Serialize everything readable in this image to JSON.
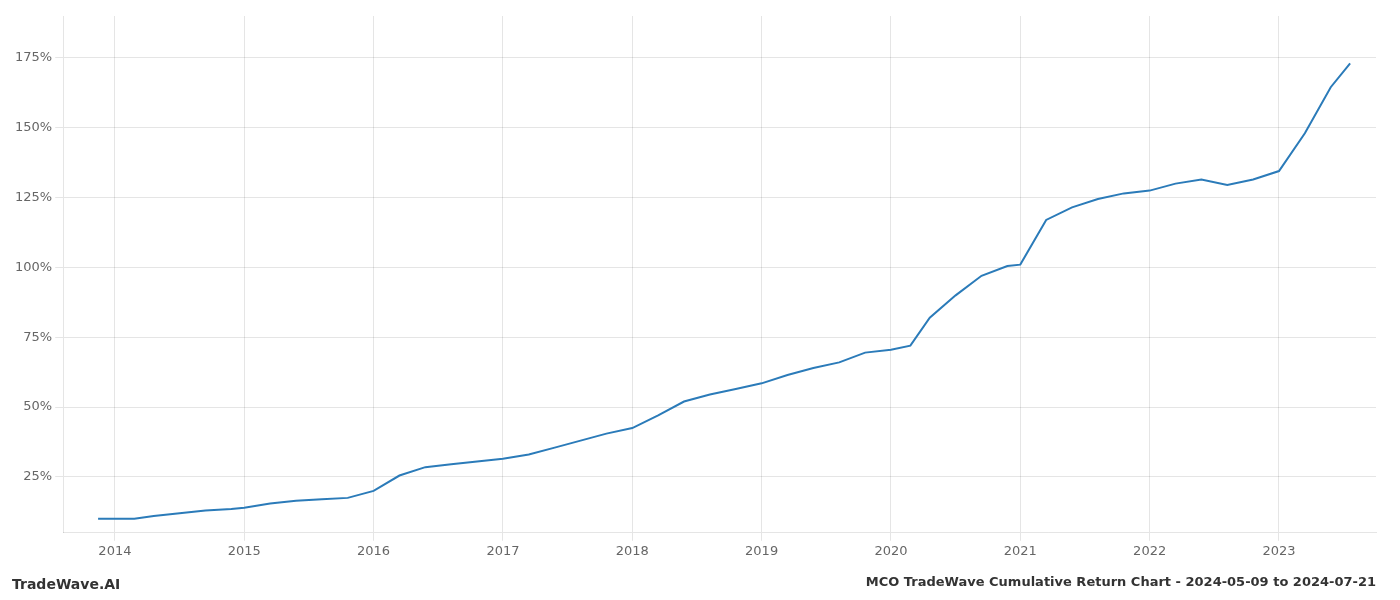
{
  "chart_data": {
    "type": "line",
    "title": "MCO TradeWave Cumulative Return Chart - 2024-05-09 to 2024-07-21",
    "annotations": [
      "TradeWave.AI"
    ],
    "x": [
      2013.87,
      2014.0,
      2014.15,
      2014.3,
      2014.5,
      2014.7,
      2014.9,
      2015.0,
      2015.2,
      2015.4,
      2015.6,
      2015.8,
      2016.0,
      2016.2,
      2016.4,
      2016.6,
      2016.8,
      2017.0,
      2017.2,
      2017.4,
      2017.6,
      2017.8,
      2018.0,
      2018.2,
      2018.4,
      2018.6,
      2018.8,
      2019.0,
      2019.2,
      2019.4,
      2019.6,
      2019.8,
      2020.0,
      2020.15,
      2020.3,
      2020.5,
      2020.7,
      2020.9,
      2021.0,
      2021.2,
      2021.4,
      2021.6,
      2021.8,
      2022.0,
      2022.2,
      2022.4,
      2022.6,
      2022.8,
      2023.0,
      2023.2,
      2023.4,
      2023.55
    ],
    "values": [
      0.1,
      0.1,
      0.1,
      0.11,
      0.12,
      0.13,
      0.135,
      0.14,
      0.155,
      0.165,
      0.17,
      0.175,
      0.2,
      0.255,
      0.285,
      0.295,
      0.305,
      0.315,
      0.33,
      0.355,
      0.38,
      0.405,
      0.425,
      0.47,
      0.52,
      0.545,
      0.565,
      0.585,
      0.615,
      0.64,
      0.66,
      0.695,
      0.705,
      0.72,
      0.82,
      0.9,
      0.97,
      1.005,
      1.01,
      1.17,
      1.215,
      1.245,
      1.265,
      1.275,
      1.3,
      1.315,
      1.295,
      1.315,
      1.345,
      1.48,
      1.645,
      1.73
    ],
    "color": "#2b7bb9",
    "xlim": [
      2013.6,
      2023.75
    ],
    "xticks": [
      2014,
      2015,
      2016,
      2017,
      2018,
      2019,
      2020,
      2021,
      2022,
      2023
    ],
    "ylim": [
      0.05,
      1.9
    ],
    "yticks": [
      {
        "value": 0.25,
        "label": "25%"
      },
      {
        "value": 0.5,
        "label": "50%"
      },
      {
        "value": 0.75,
        "label": "75%"
      },
      {
        "value": 1.0,
        "label": "100%"
      },
      {
        "value": 1.25,
        "label": "125%"
      },
      {
        "value": 1.5,
        "label": "150%"
      },
      {
        "value": 1.75,
        "label": "175%"
      }
    ],
    "grid": true
  }
}
